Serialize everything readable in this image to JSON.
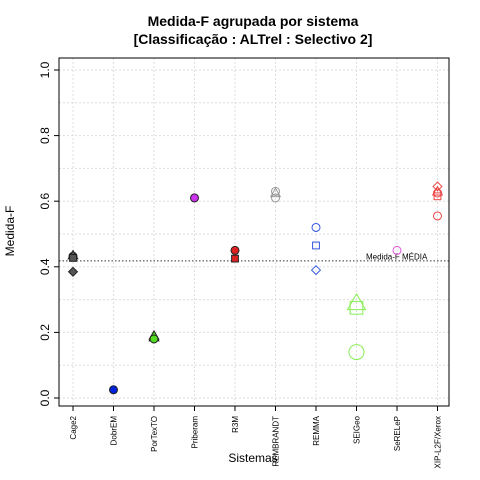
{
  "chart_data": {
    "type": "scatter",
    "title": "Medida-F agrupada por sistema",
    "subtitle": "[Classificação : ALTrel : Selectivo 2]",
    "xlabel": "Sistemas",
    "ylabel": "Medida-F",
    "ylim": [
      0.0,
      1.0
    ],
    "y_ticks": [
      "0.0",
      "0.2",
      "0.4",
      "0.6",
      "0.8",
      "1.0"
    ],
    "grid": true,
    "categories": [
      "Cage2",
      "DobrEM",
      "PorTexTO",
      "Priberam",
      "R3M",
      "REMBRANDT",
      "REMMA",
      "SEIGeo",
      "SeRELeP",
      "XIP-L2F/Xerox"
    ],
    "reference_line": {
      "label": "Medida-F MÉDIA",
      "value": 0.418
    },
    "points": [
      {
        "category": "Cage2",
        "value": 0.432,
        "shape": "circle",
        "filled": true,
        "color": "#555555"
      },
      {
        "category": "Cage2",
        "value": 0.435,
        "shape": "triangle",
        "filled": true,
        "color": "#555555"
      },
      {
        "category": "Cage2",
        "value": 0.427,
        "shape": "square",
        "filled": true,
        "color": "#555555"
      },
      {
        "category": "Cage2",
        "value": 0.385,
        "shape": "diamond",
        "filled": true,
        "color": "#555555"
      },
      {
        "category": "DobrEM",
        "value": 0.025,
        "shape": "circle",
        "filled": true,
        "color": "#0022dd"
      },
      {
        "category": "PorTexTO",
        "value": 0.185,
        "shape": "triangle",
        "filled": true,
        "color": "#55dd22"
      },
      {
        "category": "PorTexTO",
        "value": 0.19,
        "shape": "triangle",
        "filled": true,
        "color": "#55dd22"
      },
      {
        "category": "PorTexTO",
        "value": 0.18,
        "shape": "circle",
        "filled": true,
        "color": "#55dd22"
      },
      {
        "category": "Priberam",
        "value": 0.61,
        "shape": "circle",
        "filled": true,
        "color": "#cc33ee"
      },
      {
        "category": "R3M",
        "value": 0.45,
        "shape": "circle",
        "filled": true,
        "color": "#dd2222"
      },
      {
        "category": "R3M",
        "value": 0.425,
        "shape": "square",
        "filled": true,
        "color": "#dd2222"
      },
      {
        "category": "REMBRANDT",
        "value": 0.63,
        "shape": "circle",
        "filled": false,
        "color": "#999999"
      },
      {
        "category": "REMBRANDT",
        "value": 0.625,
        "shape": "triangle",
        "filled": false,
        "color": "#999999"
      },
      {
        "category": "REMBRANDT",
        "value": 0.61,
        "shape": "circle",
        "filled": false,
        "color": "#999999"
      },
      {
        "category": "REMMA",
        "value": 0.52,
        "shape": "circle",
        "filled": false,
        "color": "#3355dd"
      },
      {
        "category": "REMMA",
        "value": 0.465,
        "shape": "square",
        "filled": false,
        "color": "#3355dd"
      },
      {
        "category": "REMMA",
        "value": 0.39,
        "shape": "diamond",
        "filled": false,
        "color": "#3355dd"
      },
      {
        "category": "SEIGeo",
        "value": 0.29,
        "shape": "triangle",
        "filled": false,
        "color": "#88ee55"
      },
      {
        "category": "SEIGeo",
        "value": 0.275,
        "shape": "square",
        "filled": false,
        "color": "#88ee55"
      },
      {
        "category": "SEIGeo",
        "value": 0.14,
        "shape": "circle",
        "filled": false,
        "color": "#88ee55"
      },
      {
        "category": "SeRELeP",
        "value": 0.45,
        "shape": "circle",
        "filled": false,
        "color": "#dd55dd"
      },
      {
        "category": "XIP-L2F/Xerox",
        "value": 0.645,
        "shape": "diamond",
        "filled": false,
        "color": "#ee4444"
      },
      {
        "category": "XIP-L2F/Xerox",
        "value": 0.63,
        "shape": "triangle",
        "filled": false,
        "color": "#ee4444"
      },
      {
        "category": "XIP-L2F/Xerox",
        "value": 0.625,
        "shape": "circle",
        "filled": false,
        "color": "#ee4444"
      },
      {
        "category": "XIP-L2F/Xerox",
        "value": 0.615,
        "shape": "square",
        "filled": false,
        "color": "#ee4444"
      },
      {
        "category": "XIP-L2F/Xerox",
        "value": 0.555,
        "shape": "circle",
        "filled": false,
        "color": "#ee4444"
      }
    ]
  }
}
